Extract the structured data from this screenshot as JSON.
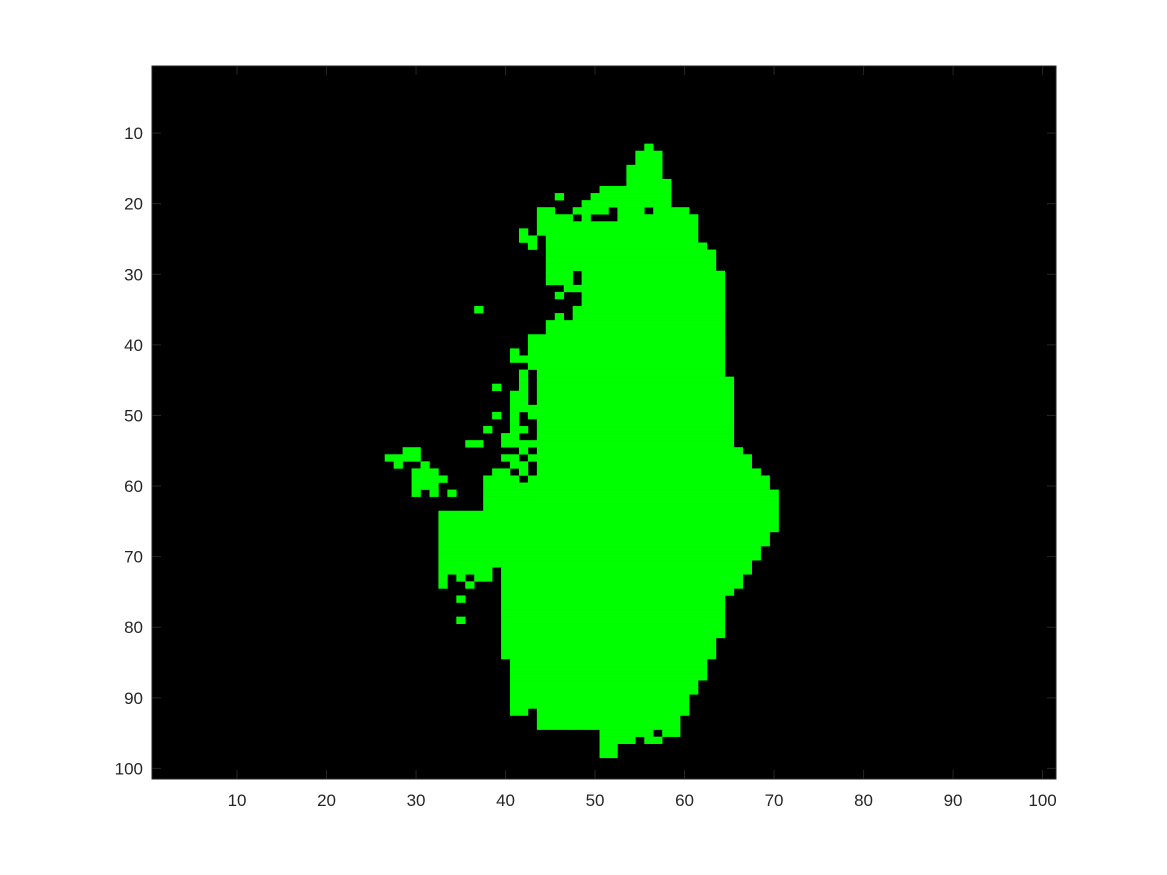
{
  "chart_data": {
    "type": "heatmap",
    "title": "",
    "xlabel": "",
    "ylabel": "",
    "xlim": [
      0.5,
      101.5
    ],
    "ylim": [
      0.5,
      101.5
    ],
    "y_axis_direction": "reversed",
    "grid": false,
    "legend": "none",
    "xticks": [
      10,
      20,
      30,
      40,
      50,
      60,
      70,
      80,
      90,
      100
    ],
    "yticks": [
      10,
      20,
      30,
      40,
      50,
      60,
      70,
      80,
      90,
      100
    ],
    "xtick_labels": [
      "10",
      "20",
      "30",
      "40",
      "50",
      "60",
      "70",
      "80",
      "90",
      "100"
    ],
    "ytick_labels": [
      "10",
      "20",
      "30",
      "40",
      "50",
      "60",
      "70",
      "80",
      "90",
      "100"
    ],
    "background_color": "#000000",
    "mask_color": "#00ff00",
    "mask_rows": [
      {
        "row": 12,
        "ranges": [
          [
            56,
            56
          ]
        ]
      },
      {
        "row": 13,
        "ranges": [
          [
            55,
            57
          ]
        ]
      },
      {
        "row": 14,
        "ranges": [
          [
            55,
            57
          ]
        ]
      },
      {
        "row": 15,
        "ranges": [
          [
            54,
            57
          ]
        ]
      },
      {
        "row": 16,
        "ranges": [
          [
            54,
            57
          ]
        ]
      },
      {
        "row": 17,
        "ranges": [
          [
            54,
            58
          ]
        ]
      },
      {
        "row": 18,
        "ranges": [
          [
            51,
            58
          ]
        ]
      },
      {
        "row": 19,
        "ranges": [
          [
            46,
            46
          ],
          [
            50,
            58
          ]
        ]
      },
      {
        "row": 20,
        "ranges": [
          [
            49,
            58
          ]
        ]
      },
      {
        "row": 21,
        "ranges": [
          [
            44,
            45
          ],
          [
            48,
            51
          ],
          [
            53,
            55
          ],
          [
            57,
            60
          ]
        ]
      },
      {
        "row": 22,
        "ranges": [
          [
            44,
            47
          ],
          [
            49,
            49
          ],
          [
            53,
            61
          ]
        ]
      },
      {
        "row": 23,
        "ranges": [
          [
            44,
            51
          ],
          [
            52,
            61
          ]
        ]
      },
      {
        "row": 24,
        "ranges": [
          [
            42,
            42
          ],
          [
            44,
            61
          ]
        ]
      },
      {
        "row": 25,
        "ranges": [
          [
            42,
            43
          ],
          [
            45,
            61
          ]
        ]
      },
      {
        "row": 26,
        "ranges": [
          [
            43,
            43
          ],
          [
            45,
            62
          ]
        ]
      },
      {
        "row": 27,
        "ranges": [
          [
            45,
            63
          ]
        ]
      },
      {
        "row": 28,
        "ranges": [
          [
            45,
            63
          ]
        ]
      },
      {
        "row": 29,
        "ranges": [
          [
            45,
            48
          ],
          [
            49,
            63
          ]
        ]
      },
      {
        "row": 30,
        "ranges": [
          [
            45,
            47
          ],
          [
            49,
            64
          ]
        ]
      },
      {
        "row": 31,
        "ranges": [
          [
            45,
            47
          ],
          [
            49,
            64
          ]
        ]
      },
      {
        "row": 32,
        "ranges": [
          [
            47,
            48
          ],
          [
            49,
            64
          ]
        ]
      },
      {
        "row": 33,
        "ranges": [
          [
            46,
            46
          ],
          [
            49,
            64
          ]
        ]
      },
      {
        "row": 34,
        "ranges": [
          [
            49,
            64
          ]
        ]
      },
      {
        "row": 35,
        "ranges": [
          [
            37,
            37
          ],
          [
            48,
            64
          ]
        ]
      },
      {
        "row": 36,
        "ranges": [
          [
            46,
            46
          ],
          [
            48,
            64
          ]
        ]
      },
      {
        "row": 37,
        "ranges": [
          [
            45,
            47
          ],
          [
            48,
            64
          ]
        ]
      },
      {
        "row": 38,
        "ranges": [
          [
            45,
            47
          ],
          [
            48,
            64
          ]
        ]
      },
      {
        "row": 39,
        "ranges": [
          [
            43,
            64
          ]
        ]
      },
      {
        "row": 40,
        "ranges": [
          [
            43,
            64
          ]
        ]
      },
      {
        "row": 41,
        "ranges": [
          [
            41,
            41
          ],
          [
            43,
            64
          ]
        ]
      },
      {
        "row": 42,
        "ranges": [
          [
            41,
            42
          ],
          [
            43,
            64
          ]
        ]
      },
      {
        "row": 43,
        "ranges": [
          [
            43,
            64
          ]
        ]
      },
      {
        "row": 44,
        "ranges": [
          [
            42,
            42
          ],
          [
            44,
            64
          ]
        ]
      },
      {
        "row": 45,
        "ranges": [
          [
            42,
            42
          ],
          [
            44,
            65
          ]
        ]
      },
      {
        "row": 46,
        "ranges": [
          [
            39,
            39
          ],
          [
            42,
            42
          ],
          [
            44,
            65
          ]
        ]
      },
      {
        "row": 47,
        "ranges": [
          [
            41,
            42
          ],
          [
            44,
            65
          ]
        ]
      },
      {
        "row": 48,
        "ranges": [
          [
            41,
            42
          ],
          [
            44,
            65
          ]
        ]
      },
      {
        "row": 49,
        "ranges": [
          [
            41,
            43
          ],
          [
            44,
            65
          ]
        ]
      },
      {
        "row": 50,
        "ranges": [
          [
            39,
            39
          ],
          [
            41,
            41
          ],
          [
            43,
            65
          ]
        ]
      },
      {
        "row": 51,
        "ranges": [
          [
            41,
            41
          ],
          [
            44,
            65
          ]
        ]
      },
      {
        "row": 52,
        "ranges": [
          [
            38,
            38
          ],
          [
            41,
            42
          ],
          [
            44,
            65
          ]
        ]
      },
      {
        "row": 53,
        "ranges": [
          [
            40,
            41
          ],
          [
            44,
            65
          ]
        ]
      },
      {
        "row": 54,
        "ranges": [
          [
            36,
            37
          ],
          [
            40,
            65
          ]
        ]
      },
      {
        "row": 55,
        "ranges": [
          [
            29,
            30
          ],
          [
            42,
            42
          ],
          [
            44,
            66
          ]
        ]
      },
      {
        "row": 56,
        "ranges": [
          [
            27,
            30
          ],
          [
            40,
            41
          ],
          [
            43,
            67
          ]
        ]
      },
      {
        "row": 57,
        "ranges": [
          [
            28,
            28
          ],
          [
            31,
            31
          ],
          [
            41,
            42
          ],
          [
            44,
            67
          ]
        ]
      },
      {
        "row": 58,
        "ranges": [
          [
            30,
            32
          ],
          [
            39,
            40
          ],
          [
            42,
            42
          ],
          [
            44,
            68
          ]
        ]
      },
      {
        "row": 59,
        "ranges": [
          [
            30,
            33
          ],
          [
            38,
            41
          ],
          [
            43,
            69
          ]
        ]
      },
      {
        "row": 60,
        "ranges": [
          [
            30,
            32
          ],
          [
            38,
            69
          ]
        ]
      },
      {
        "row": 61,
        "ranges": [
          [
            30,
            30
          ],
          [
            32,
            32
          ],
          [
            34,
            34
          ],
          [
            38,
            70
          ]
        ]
      },
      {
        "row": 62,
        "ranges": [
          [
            38,
            70
          ]
        ]
      },
      {
        "row": 63,
        "ranges": [
          [
            38,
            70
          ]
        ]
      },
      {
        "row": 64,
        "ranges": [
          [
            33,
            34
          ],
          [
            35,
            70
          ]
        ]
      },
      {
        "row": 65,
        "ranges": [
          [
            33,
            70
          ]
        ]
      },
      {
        "row": 66,
        "ranges": [
          [
            33,
            70
          ]
        ]
      },
      {
        "row": 67,
        "ranges": [
          [
            33,
            69
          ]
        ]
      },
      {
        "row": 68,
        "ranges": [
          [
            33,
            69
          ]
        ]
      },
      {
        "row": 69,
        "ranges": [
          [
            33,
            68
          ]
        ]
      },
      {
        "row": 70,
        "ranges": [
          [
            33,
            68
          ]
        ]
      },
      {
        "row": 71,
        "ranges": [
          [
            33,
            39
          ],
          [
            40,
            67
          ]
        ]
      },
      {
        "row": 72,
        "ranges": [
          [
            33,
            38
          ],
          [
            40,
            67
          ]
        ]
      },
      {
        "row": 73,
        "ranges": [
          [
            33,
            33
          ],
          [
            35,
            35
          ],
          [
            37,
            38
          ],
          [
            40,
            66
          ]
        ]
      },
      {
        "row": 74,
        "ranges": [
          [
            33,
            33
          ],
          [
            36,
            36
          ],
          [
            40,
            64
          ],
          [
            65,
            66
          ]
        ]
      },
      {
        "row": 75,
        "ranges": [
          [
            40,
            65
          ]
        ]
      },
      {
        "row": 76,
        "ranges": [
          [
            35,
            35
          ],
          [
            40,
            64
          ]
        ]
      },
      {
        "row": 77,
        "ranges": [
          [
            40,
            64
          ]
        ]
      },
      {
        "row": 78,
        "ranges": [
          [
            40,
            64
          ]
        ]
      },
      {
        "row": 79,
        "ranges": [
          [
            35,
            35
          ],
          [
            40,
            64
          ]
        ]
      },
      {
        "row": 80,
        "ranges": [
          [
            40,
            64
          ]
        ]
      },
      {
        "row": 81,
        "ranges": [
          [
            40,
            64
          ]
        ]
      },
      {
        "row": 82,
        "ranges": [
          [
            40,
            63
          ]
        ]
      },
      {
        "row": 83,
        "ranges": [
          [
            40,
            63
          ]
        ]
      },
      {
        "row": 84,
        "ranges": [
          [
            40,
            63
          ]
        ]
      },
      {
        "row": 85,
        "ranges": [
          [
            41,
            62
          ]
        ]
      },
      {
        "row": 86,
        "ranges": [
          [
            41,
            62
          ]
        ]
      },
      {
        "row": 87,
        "ranges": [
          [
            41,
            62
          ]
        ]
      },
      {
        "row": 88,
        "ranges": [
          [
            41,
            61
          ]
        ]
      },
      {
        "row": 89,
        "ranges": [
          [
            41,
            61
          ]
        ]
      },
      {
        "row": 90,
        "ranges": [
          [
            41,
            50
          ],
          [
            51,
            60
          ]
        ]
      },
      {
        "row": 91,
        "ranges": [
          [
            41,
            60
          ]
        ]
      },
      {
        "row": 92,
        "ranges": [
          [
            41,
            42
          ],
          [
            44,
            60
          ]
        ]
      },
      {
        "row": 93,
        "ranges": [
          [
            44,
            59
          ]
        ]
      },
      {
        "row": 94,
        "ranges": [
          [
            44,
            47
          ],
          [
            48,
            49
          ],
          [
            50,
            51
          ],
          [
            52,
            59
          ]
        ]
      },
      {
        "row": 95,
        "ranges": [
          [
            51,
            56
          ],
          [
            58,
            59
          ]
        ]
      },
      {
        "row": 96,
        "ranges": [
          [
            51,
            54
          ],
          [
            56,
            57
          ]
        ]
      },
      {
        "row": 97,
        "ranges": [
          [
            51,
            52
          ]
        ]
      },
      {
        "row": 98,
        "ranges": [
          [
            51,
            52
          ]
        ]
      }
    ]
  }
}
